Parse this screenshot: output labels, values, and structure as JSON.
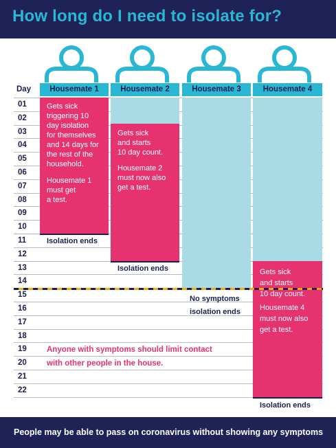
{
  "title": "How long do I need to isolate for?",
  "footer": "People may be able to pass on coronavirus without showing any symptoms",
  "day_header": "Day",
  "days": [
    "01",
    "02",
    "03",
    "04",
    "05",
    "06",
    "07",
    "08",
    "09",
    "10",
    "11",
    "12",
    "13",
    "14",
    "15",
    "16",
    "17",
    "18",
    "19",
    "20",
    "21",
    "22"
  ],
  "housemates": [
    {
      "label": "Housemate 1",
      "text": [
        "Gets sick",
        "triggering 10",
        "day isolation",
        "for themselves",
        "and 14 days for",
        "the rest of the",
        "household."
      ],
      "test_text": [
        "Housemate 1",
        "must get",
        "a test."
      ],
      "end_label": "Isolation ends"
    },
    {
      "label": "Housemate 2",
      "text": [
        "Gets sick",
        "and starts",
        "10 day count."
      ],
      "test_text": [
        "Housemate 2",
        "must now also",
        "get a test."
      ],
      "end_label": "Isolation ends"
    },
    {
      "label": "Housemate 3",
      "end_text": [
        "No symptoms",
        "isolation ends"
      ]
    },
    {
      "label": "Housemate 4",
      "text": [
        "Gets sick",
        "and starts",
        "10 day count."
      ],
      "test_text": [
        "Housemate 4",
        "must now also",
        "get a test."
      ],
      "end_label": "Isolation ends"
    }
  ],
  "advice": [
    "Anyone with symptoms should limit contact",
    "with other people in the house."
  ],
  "colors": {
    "navy": "#1e2257",
    "cyan": "#29b7d3",
    "pink": "#e6336f",
    "light_blue": "#a9dbe6",
    "orange": "#f2a61a"
  },
  "icons": [
    "person-icon",
    "person-icon",
    "person-icon",
    "person-icon"
  ]
}
